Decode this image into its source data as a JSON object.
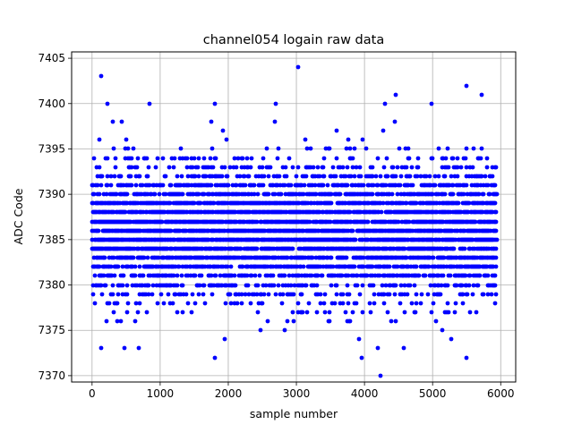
{
  "chart_data": {
    "type": "scatter",
    "title": "channel054 logain raw data",
    "xlabel": "sample number",
    "ylabel": "ADC Code",
    "xlim": [
      -300,
      6220
    ],
    "ylim": [
      7369.3,
      7405.7
    ],
    "xticks": [
      0,
      1000,
      2000,
      3000,
      4000,
      5000,
      6000
    ],
    "xtick_labels": [
      "0",
      "1000",
      "2000",
      "3000",
      "4000",
      "5000",
      "6000"
    ],
    "yticks": [
      7370,
      7375,
      7380,
      7385,
      7390,
      7395,
      7400,
      7405
    ],
    "ytick_labels": [
      "7370",
      "7375",
      "7380",
      "7385",
      "7390",
      "7395",
      "7400",
      "7405"
    ],
    "grid": true,
    "marker_color": "#0000ff",
    "series": [
      {
        "n_samples": 5940,
        "x_step": 1,
        "code_min": 7370,
        "code_max": 7404,
        "typical_mean": 7386,
        "typical_spread": 3.6,
        "dense_band": [
          7379,
          7393
        ],
        "outliers": [
          {
            "x": 130,
            "y": 7403
          },
          {
            "x": 3020,
            "y": 7404
          },
          {
            "x": 5500,
            "y": 7402
          },
          {
            "x": 4240,
            "y": 7370
          },
          {
            "x": 1800,
            "y": 7372
          },
          {
            "x": 3960,
            "y": 7372
          },
          {
            "x": 5500,
            "y": 7372
          },
          {
            "x": 140,
            "y": 7373
          },
          {
            "x": 480,
            "y": 7373
          },
          {
            "x": 680,
            "y": 7373
          },
          {
            "x": 4200,
            "y": 7373
          },
          {
            "x": 4580,
            "y": 7373
          },
          {
            "x": 4460,
            "y": 7401
          },
          {
            "x": 5720,
            "y": 7401
          },
          {
            "x": 220,
            "y": 7400
          },
          {
            "x": 840,
            "y": 7400
          },
          {
            "x": 1800,
            "y": 7400
          },
          {
            "x": 2700,
            "y": 7400
          },
          {
            "x": 4300,
            "y": 7400
          },
          {
            "x": 4980,
            "y": 7400
          }
        ]
      }
    ]
  }
}
